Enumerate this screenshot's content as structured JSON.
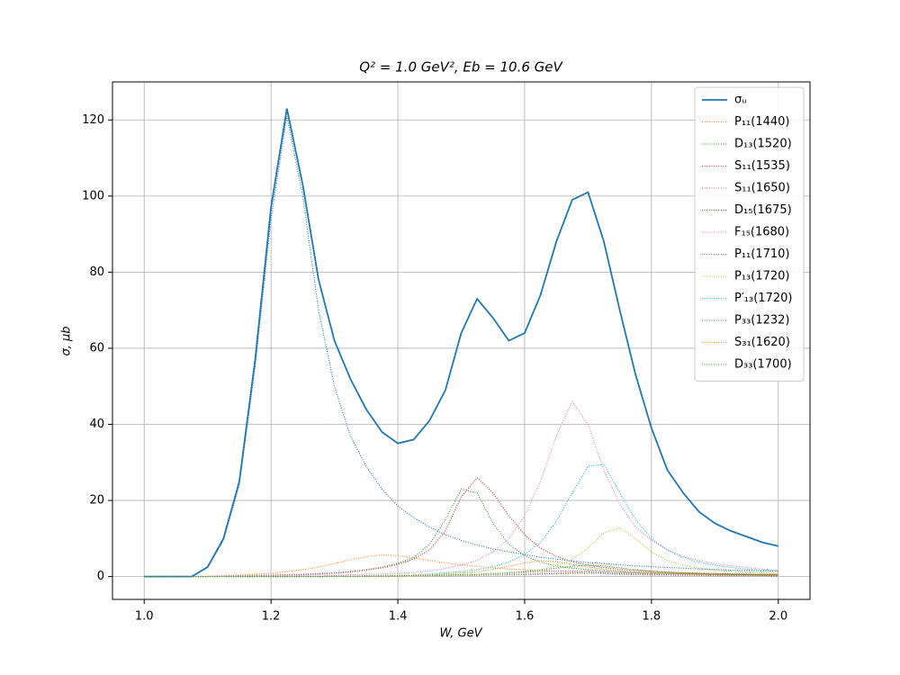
{
  "chart_data": {
    "type": "line",
    "title": "Q² = 1.0 GeV²,  Eb = 10.6 GeV",
    "xlabel": "W, GeV",
    "ylabel": "σ, μb",
    "xlim": [
      0.95,
      2.05
    ],
    "ylim": [
      -6,
      130
    ],
    "xticks": [
      {
        "value": 1,
        "label": "1.0"
      },
      1.2,
      1.4,
      1.6,
      1.8,
      {
        "value": 2,
        "label": "2.0"
      }
    ],
    "yticks": [
      0,
      20,
      40,
      60,
      80,
      100,
      120
    ],
    "grid": true,
    "legend": "upper-right",
    "x": [
      1.0,
      1.025,
      1.05,
      1.075,
      1.1,
      1.125,
      1.15,
      1.175,
      1.2,
      1.225,
      1.25,
      1.275,
      1.3,
      1.325,
      1.35,
      1.375,
      1.4,
      1.425,
      1.45,
      1.475,
      1.5,
      1.525,
      1.55,
      1.575,
      1.6,
      1.625,
      1.65,
      1.675,
      1.7,
      1.725,
      1.75,
      1.775,
      1.8,
      1.825,
      1.85,
      1.875,
      1.9,
      1.925,
      1.95,
      1.975,
      2.0
    ],
    "series": [
      {
        "name": "σᵤ",
        "color": "#1f77b4",
        "style": "solid",
        "values": [
          0,
          0,
          0,
          0,
          2.5,
          10,
          25,
          57,
          97,
          123,
          103,
          78,
          62,
          52,
          44,
          38,
          35,
          36,
          41,
          49,
          64,
          73,
          68,
          62,
          64,
          74,
          88,
          99,
          101,
          88,
          70,
          53,
          39,
          28,
          22,
          17,
          14,
          12,
          10.5,
          9,
          8
        ]
      },
      {
        "name": "P₁₁(1440)",
        "color": "#ff7f0e",
        "style": "dotted",
        "values": [
          0,
          0,
          0,
          0,
          0.1,
          0.2,
          0.4,
          0.6,
          0.9,
          1.3,
          1.8,
          2.5,
          3.4,
          4.4,
          5.2,
          5.7,
          5.5,
          4.9,
          4.2,
          3.6,
          3.1,
          2.7,
          2.3,
          2.0,
          1.8,
          1.6,
          1.4,
          1.3,
          1.2,
          1.1,
          1.0,
          0.9,
          0.8,
          0.8,
          0.7,
          0.7,
          0.6,
          0.6,
          0.5,
          0.5,
          0.5
        ]
      },
      {
        "name": "D₁₃(1520)",
        "color": "#2ca02c",
        "style": "dotted",
        "values": [
          0,
          0,
          0,
          0,
          0,
          0.1,
          0.2,
          0.3,
          0.4,
          0.5,
          0.6,
          0.8,
          1.0,
          1.3,
          1.8,
          2.5,
          3.5,
          5,
          8.5,
          15,
          23,
          22,
          14,
          8.5,
          5.5,
          3.8,
          2.8,
          2.2,
          1.8,
          1.5,
          1.3,
          1.1,
          1.0,
          0.9,
          0.8,
          0.7,
          0.6,
          0.6,
          0.5,
          0.5,
          0.4
        ]
      },
      {
        "name": "S₁₁(1535)",
        "color": "#d62728",
        "style": "dotted",
        "values": [
          0,
          0,
          0,
          0,
          0,
          0.1,
          0.1,
          0.2,
          0.3,
          0.4,
          0.5,
          0.7,
          0.9,
          1.2,
          1.7,
          2.3,
          3.2,
          4.6,
          7,
          12,
          21,
          26,
          22,
          16,
          11,
          7.5,
          5.3,
          3.9,
          3.0,
          2.4,
          1.9,
          1.6,
          1.4,
          1.2,
          1.0,
          0.9,
          0.8,
          0.7,
          0.7,
          0.6,
          0.6
        ]
      },
      {
        "name": "S₁₁(1650)",
        "color": "#9467bd",
        "style": "dotted",
        "values": [
          0,
          0,
          0,
          0,
          0,
          0,
          0,
          0,
          0,
          0,
          0,
          0,
          0.1,
          0.1,
          0.1,
          0.2,
          0.2,
          0.3,
          0.3,
          0.4,
          0.5,
          0.6,
          0.7,
          0.9,
          1.1,
          1.3,
          1.5,
          1.5,
          1.4,
          1.2,
          1.0,
          0.9,
          0.8,
          0.7,
          0.6,
          0.5,
          0.5,
          0.4,
          0.4,
          0.4,
          0.3
        ]
      },
      {
        "name": "D₁₅(1675)",
        "color": "#8c564b",
        "style": "dotted",
        "values": [
          0,
          0,
          0,
          0,
          0,
          0,
          0,
          0,
          0,
          0,
          0,
          0,
          0.1,
          0.1,
          0.1,
          0.1,
          0.2,
          0.2,
          0.2,
          0.3,
          0.3,
          0.4,
          0.4,
          0.5,
          0.6,
          0.8,
          0.9,
          1.0,
          0.9,
          0.8,
          0.6,
          0.5,
          0.4,
          0.4,
          0.3,
          0.3,
          0.2,
          0.2,
          0.2,
          0.2,
          0.1
        ]
      },
      {
        "name": "F₁₅(1680)",
        "color": "#e377c2",
        "style": "dotted",
        "values": [
          0,
          0,
          0,
          0,
          0,
          0.1,
          0.1,
          0.2,
          0.2,
          0.3,
          0.3,
          0.4,
          0.4,
          0.5,
          0.6,
          0.7,
          0.8,
          1.1,
          1.5,
          2.1,
          3,
          4.3,
          6.5,
          10,
          16,
          25,
          37,
          46,
          40,
          28,
          19,
          13,
          9.5,
          7,
          5.3,
          4.2,
          3.4,
          2.8,
          2.4,
          2.0,
          1.7
        ]
      },
      {
        "name": "P₁₁(1710)",
        "color": "#7f7f7f",
        "style": "dotted",
        "values": [
          0,
          0,
          0,
          0,
          0,
          0,
          0,
          0,
          0,
          0,
          0,
          0,
          0.1,
          0.1,
          0.1,
          0.1,
          0.1,
          0.2,
          0.2,
          0.2,
          0.3,
          0.3,
          0.4,
          0.4,
          0.5,
          0.6,
          0.7,
          0.8,
          0.9,
          0.9,
          0.8,
          0.7,
          0.6,
          0.5,
          0.5,
          0.4,
          0.4,
          0.3,
          0.3,
          0.3,
          0.3
        ]
      },
      {
        "name": "P₁₃(1720)",
        "color": "#bcbd22",
        "style": "dotted",
        "values": [
          0,
          0,
          0,
          0,
          0,
          0,
          0,
          0,
          0,
          0,
          0,
          0,
          0,
          0,
          0,
          0,
          0.1,
          0.1,
          0.2,
          0.2,
          0.3,
          0.4,
          0.6,
          0.8,
          1.2,
          1.8,
          2.8,
          4.5,
          7.5,
          11.5,
          12.8,
          10,
          6.5,
          4.3,
          3,
          2.2,
          1.7,
          1.4,
          1.1,
          1.0,
          0.8
        ]
      },
      {
        "name": "P′₁₃(1720)",
        "color": "#17becf",
        "style": "dotted",
        "values": [
          0,
          0,
          0,
          0,
          0,
          0,
          0,
          0,
          0,
          0,
          0,
          0,
          0.1,
          0.1,
          0.2,
          0.2,
          0.3,
          0.4,
          0.7,
          1.0,
          1.3,
          1.8,
          2.6,
          3.8,
          5.8,
          9,
          14.5,
          22,
          29,
          29.5,
          22,
          15,
          10,
          7,
          5,
          3.8,
          3,
          2.4,
          2,
          1.7,
          1.4
        ]
      },
      {
        "name": "P₃₃(1232)",
        "color": "#1f77b4",
        "style": "dotted",
        "values": [
          0,
          0,
          0,
          0,
          2.4,
          9.5,
          24,
          55,
          94,
          121,
          100,
          70,
          50,
          37,
          29,
          23,
          18.5,
          15.5,
          13,
          11,
          9.5,
          8.3,
          7.3,
          6.5,
          5.8,
          5.1,
          4.6,
          4.1,
          3.7,
          3.4,
          3.1,
          2.8,
          2.6,
          2.4,
          2.2,
          2.0,
          1.9,
          1.7,
          1.6,
          1.5,
          1.4
        ]
      },
      {
        "name": "S₃₁(1620)",
        "color": "#ff7f0e",
        "style": "dotted",
        "values": [
          0,
          0,
          0,
          0,
          0,
          0,
          0,
          0,
          0,
          0,
          0,
          0,
          0.1,
          0.1,
          0.2,
          0.2,
          0.3,
          0.4,
          0.5,
          0.7,
          0.9,
          1.3,
          1.9,
          2.7,
          3.6,
          4.2,
          3.9,
          3.2,
          2.5,
          1.9,
          1.5,
          1.2,
          1.0,
          0.8,
          0.7,
          0.6,
          0.5,
          0.4,
          0.4,
          0.3,
          0.3
        ]
      },
      {
        "name": "D₃₃(1700)",
        "color": "#2ca02c",
        "style": "dotted",
        "values": [
          0,
          0,
          0,
          0,
          0,
          0,
          0,
          0,
          0,
          0,
          0,
          0,
          0.1,
          0.1,
          0.1,
          0.2,
          0.2,
          0.3,
          0.3,
          0.4,
          0.5,
          0.6,
          0.8,
          1.0,
          1.3,
          1.7,
          2.2,
          2.7,
          3.0,
          2.8,
          2.3,
          1.8,
          1.4,
          1.1,
          0.9,
          0.8,
          0.6,
          0.5,
          0.5,
          0.4,
          0.4
        ]
      }
    ]
  }
}
